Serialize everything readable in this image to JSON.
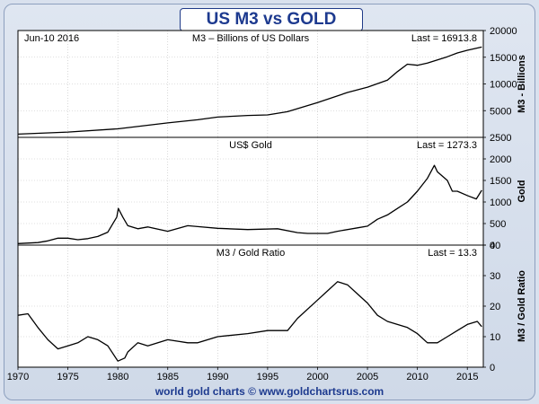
{
  "page": {
    "title": "US M3 vs GOLD",
    "footer": "world gold charts © www.goldchartsrus.com",
    "date_label": "Jun-10 2016"
  },
  "colors": {
    "line": "#000000",
    "grid": "#bfbfbf",
    "plot_background": "#ffffff",
    "title_text": "#1d3a8f",
    "border": "#000000"
  },
  "chart_data": [
    {
      "type": "line",
      "title": "M3 – Billions of US Dollars",
      "last_label": "Last = 16913.8",
      "ylabel": "M3 - Billions",
      "ylim": [
        0,
        20000
      ],
      "yticks": [
        5000,
        10000,
        15000,
        20000
      ],
      "yticklabels": [
        "5000",
        "10000",
        "15000",
        "20000"
      ],
      "grid": true,
      "x": [
        1970,
        1975,
        1980,
        1985,
        1988,
        1990,
        1993,
        1995,
        1997,
        2000,
        2003,
        2005,
        2007,
        2008,
        2009,
        2010,
        2011,
        2012,
        2013,
        2014,
        2015,
        2016.45
      ],
      "values": [
        600,
        1000,
        1600,
        2700,
        3300,
        3800,
        4100,
        4200,
        4800,
        6500,
        8400,
        9400,
        10700,
        12300,
        13700,
        13500,
        13900,
        14500,
        15100,
        15800,
        16300,
        16913.8
      ]
    },
    {
      "type": "line",
      "title": "US$ Gold",
      "last_label": "Last = 1273.3",
      "ylabel": "Gold",
      "ylim": [
        0,
        2500
      ],
      "yticks": [
        0,
        500,
        1000,
        1500,
        2000,
        2500
      ],
      "yticklabels": [
        "0",
        "500",
        "1000",
        "1500",
        "2000",
        "2500"
      ],
      "grid": true,
      "x": [
        1970,
        1972,
        1973,
        1974,
        1975,
        1976,
        1977,
        1978,
        1979,
        1979.9,
        1980.05,
        1980.5,
        1981,
        1982,
        1983,
        1985,
        1987,
        1988,
        1990,
        1993,
        1996,
        1998,
        1999,
        2001,
        2002,
        2004,
        2005,
        2006,
        2007,
        2008,
        2009,
        2010,
        2011,
        2011.7,
        2012,
        2013,
        2013.5,
        2014,
        2015,
        2015.9,
        2016.45
      ],
      "values": [
        36,
        58,
        97,
        160,
        160,
        125,
        150,
        200,
        300,
        650,
        850,
        650,
        450,
        380,
        420,
        320,
        450,
        430,
        390,
        360,
        380,
        290,
        270,
        270,
        320,
        400,
        440,
        600,
        700,
        850,
        1000,
        1250,
        1550,
        1850,
        1700,
        1500,
        1250,
        1250,
        1150,
        1070,
        1273.3
      ]
    },
    {
      "type": "line",
      "title": "M3 / Gold Ratio",
      "last_label": "Last = 13.3",
      "ylabel": "M3 / Gold Ratio",
      "ylim": [
        0,
        40
      ],
      "yticks": [
        0,
        10,
        20,
        30,
        40
      ],
      "yticklabels": [
        "0",
        "10",
        "20",
        "30",
        "40"
      ],
      "grid": true,
      "x": [
        1970,
        1971,
        1972,
        1973,
        1974,
        1975,
        1976,
        1977,
        1978,
        1979,
        1980,
        1980.7,
        1981,
        1982,
        1983,
        1985,
        1987,
        1988,
        1990,
        1993,
        1995,
        1997,
        1998,
        2000,
        2001,
        2002,
        2003,
        2004,
        2005,
        2006,
        2007,
        2008,
        2009,
        2010,
        2011,
        2012,
        2013,
        2014,
        2015,
        2016,
        2016.45
      ],
      "values": [
        17,
        17.5,
        13,
        9,
        6,
        7,
        8,
        10,
        9,
        7,
        2,
        3,
        5,
        8,
        7,
        9,
        8,
        8,
        10,
        11,
        12,
        12,
        16,
        22,
        25,
        28,
        27,
        24,
        21,
        17,
        15,
        14,
        13,
        11,
        8,
        8,
        10,
        12,
        14,
        15,
        13.3
      ]
    }
  ],
  "x_axis": {
    "ticks": [
      1970,
      1975,
      1980,
      1985,
      1990,
      1995,
      2000,
      2005,
      2010,
      2015
    ],
    "ticklabels": [
      "1970",
      "1975",
      "1980",
      "1985",
      "1990",
      "1995",
      "2000",
      "2005",
      "2010",
      "2015"
    ],
    "xlim": [
      1970,
      2016.6
    ]
  }
}
